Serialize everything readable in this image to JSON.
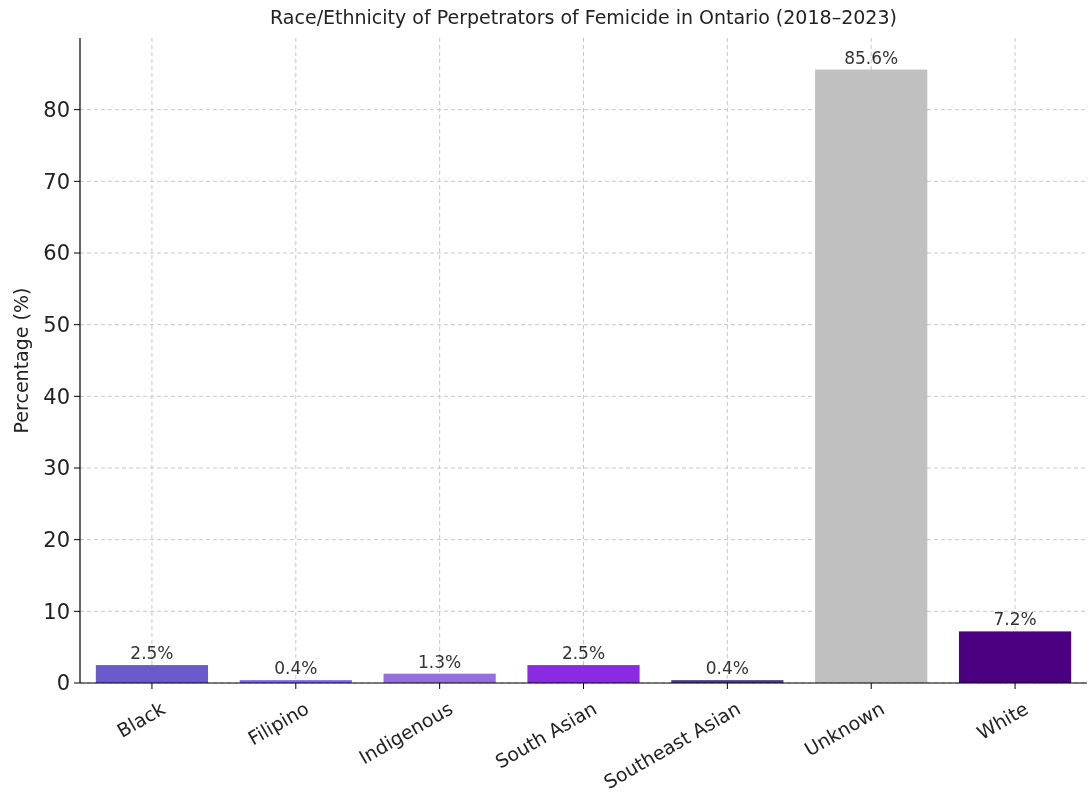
{
  "chart_data": {
    "type": "bar",
    "title": "Race/Ethnicity of Perpetrators of Femicide in Ontario (2018–2023)",
    "ylabel": "Percentage (%)",
    "categories": [
      "Black",
      "Filipino",
      "Indigenous",
      "South Asian",
      "Southeast Asian",
      "Unknown",
      "White"
    ],
    "values": [
      2.5,
      0.4,
      1.3,
      2.5,
      0.4,
      85.6,
      7.2
    ],
    "colors": [
      "#6a5acd",
      "#7b68ee",
      "#9370db",
      "#8a2be2",
      "#483d8b",
      "#c0c0c0",
      "#4b0082"
    ],
    "value_labels": [
      "2.5%",
      "0.4%",
      "1.3%",
      "2.5%",
      "0.4%",
      "85.6%",
      "7.2%"
    ],
    "ylim": [
      0,
      90
    ],
    "yticks": [
      0,
      10,
      20,
      30,
      40,
      50,
      60,
      70,
      80
    ],
    "grid": true
  }
}
